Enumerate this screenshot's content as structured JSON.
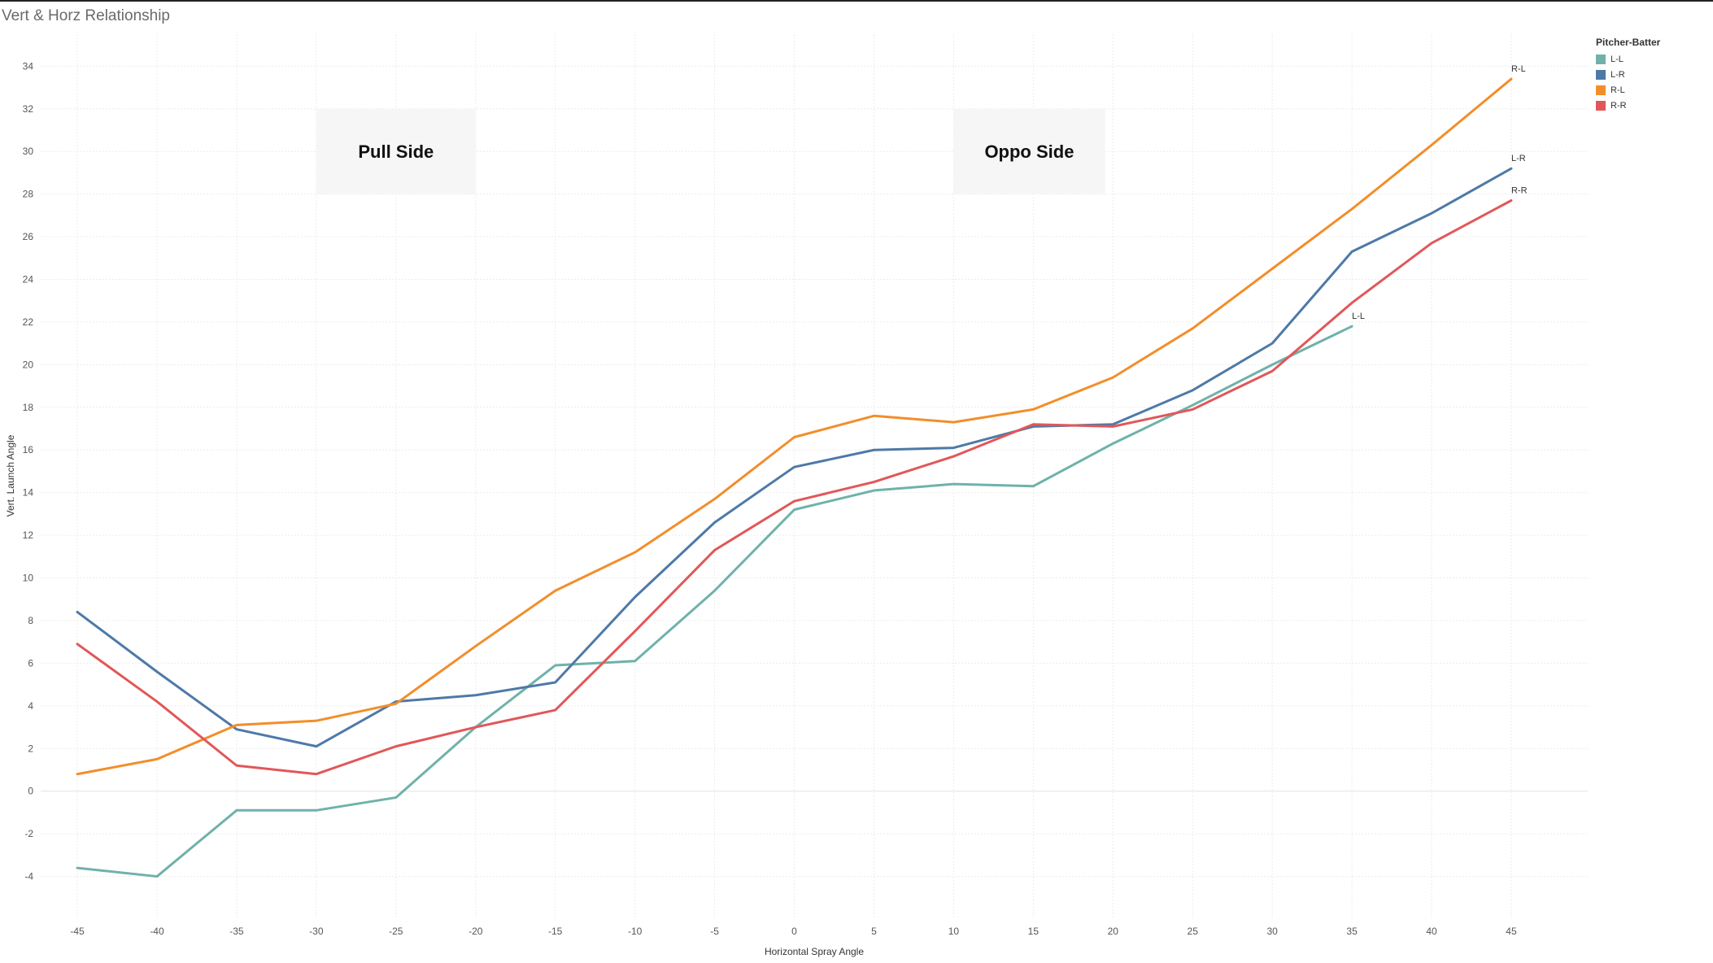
{
  "title": "Vert & Horz Relationship",
  "legend": {
    "title": "Pitcher-Batter",
    "items": [
      {
        "label": "L-L",
        "color": "#6fb2aa"
      },
      {
        "label": "L-R",
        "color": "#4e79a7"
      },
      {
        "label": "R-L",
        "color": "#f28e2b"
      },
      {
        "label": "R-R",
        "color": "#e15759"
      }
    ]
  },
  "chart_data": {
    "type": "line",
    "title": "Vert & Horz Relationship",
    "xlabel": "Horizontal Spray Angle",
    "ylabel": "Vert. Launch Angle",
    "x": [
      -45,
      -40,
      -35,
      -30,
      -25,
      -20,
      -15,
      -10,
      -5,
      0,
      5,
      10,
      15,
      20,
      25,
      30,
      35,
      40,
      45
    ],
    "x_ticks": [
      "-45",
      "-40",
      "-35",
      "-30",
      "-25",
      "-20",
      "-15",
      "-10",
      "-5",
      "0",
      "5",
      "10",
      "15",
      "20",
      "25",
      "30",
      "35",
      "40",
      "45"
    ],
    "y_ticks": [
      "34",
      "32",
      "30",
      "28",
      "26",
      "24",
      "22",
      "20",
      "18",
      "16",
      "14",
      "12",
      "10",
      "8",
      "6",
      "4",
      "2",
      "0",
      "-2",
      "-4"
    ],
    "xlim": [
      -47.3,
      49.8
    ],
    "ylim": [
      -6,
      35.5
    ],
    "grid": true,
    "legend_position": "top-right",
    "series": [
      {
        "name": "L-L",
        "color": "#6fb2aa",
        "values": [
          -3.6,
          -4.0,
          -0.9,
          -0.9,
          -0.3,
          3.0,
          5.9,
          6.1,
          9.4,
          13.2,
          14.1,
          14.4,
          14.3,
          16.3,
          18.1,
          20.0,
          21.8,
          null,
          null
        ]
      },
      {
        "name": "L-R",
        "color": "#4e79a7",
        "values": [
          8.4,
          5.6,
          2.9,
          2.1,
          4.2,
          4.5,
          5.1,
          9.1,
          12.6,
          15.2,
          16.0,
          16.1,
          17.1,
          17.2,
          18.8,
          21.0,
          25.3,
          27.1,
          29.2
        ]
      },
      {
        "name": "R-L",
        "color": "#f28e2b",
        "values": [
          0.8,
          1.5,
          3.1,
          3.3,
          4.1,
          6.8,
          9.4,
          11.2,
          13.7,
          16.6,
          17.6,
          17.3,
          17.9,
          19.4,
          21.7,
          24.5,
          27.3,
          30.3,
          33.4
        ]
      },
      {
        "name": "R-R",
        "color": "#e15759",
        "values": [
          6.9,
          4.2,
          1.2,
          0.8,
          2.1,
          3.0,
          3.8,
          7.5,
          11.3,
          13.6,
          14.5,
          15.7,
          17.2,
          17.1,
          17.9,
          19.7,
          22.9,
          25.7,
          27.7
        ]
      }
    ],
    "annotations": [
      {
        "text": "Pull Side",
        "x_range": [
          -30,
          -20
        ],
        "y_range": [
          28,
          32
        ]
      },
      {
        "text": "Oppo Side",
        "x_range": [
          10,
          19.5
        ],
        "y_range": [
          28,
          32
        ]
      }
    ]
  }
}
